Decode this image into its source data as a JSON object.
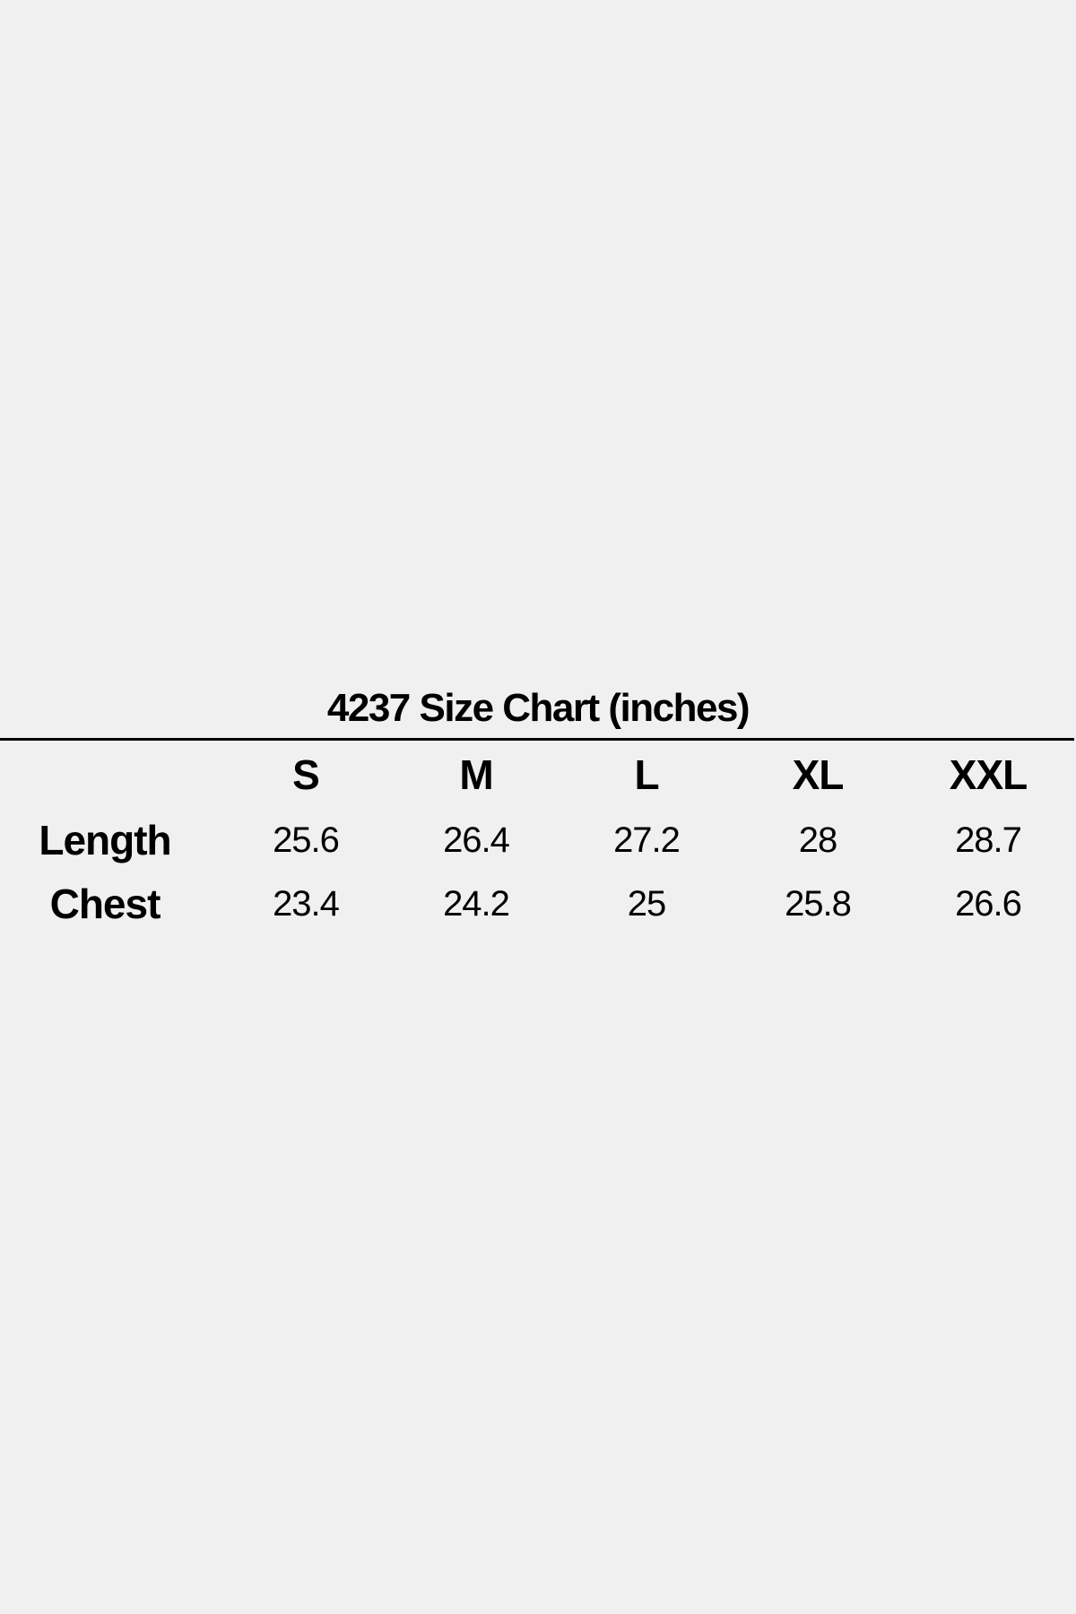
{
  "title": "4237 Size Chart (inches)",
  "chart_data": {
    "type": "table",
    "columns": [
      "S",
      "M",
      "L",
      "XL",
      "XXL"
    ],
    "rows": [
      {
        "label": "Length",
        "values": [
          "25.6",
          "26.4",
          "27.2",
          "28",
          "28.7"
        ]
      },
      {
        "label": "Chest",
        "values": [
          "23.4",
          "24.2",
          "25",
          "25.8",
          "26.6"
        ]
      }
    ]
  }
}
